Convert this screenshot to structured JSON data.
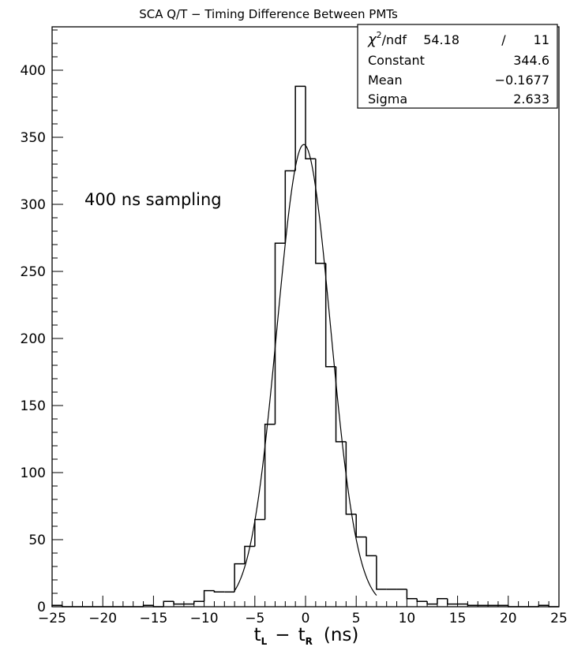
{
  "chart_data": {
    "type": "histogram",
    "title": "SCA Q/T − Timing Difference Between PMTs",
    "xlabel": {
      "main_l": "t",
      "sub_l": "L",
      "minus": "−",
      "main_r": "t",
      "sub_r": "R",
      "unit": "(ns)"
    },
    "ylabel": "",
    "xlim": [
      -25,
      25
    ],
    "ylim": [
      0,
      400
    ],
    "x_ticks": [
      -25,
      -20,
      -15,
      -10,
      -5,
      0,
      5,
      10,
      15,
      20,
      25
    ],
    "y_ticks": [
      0,
      50,
      100,
      150,
      200,
      250,
      300,
      350,
      400
    ],
    "bin_width": 1,
    "bins": [
      {
        "x0": -25,
        "y": 1
      },
      {
        "x0": -24,
        "y": 0
      },
      {
        "x0": -23,
        "y": 0
      },
      {
        "x0": -22,
        "y": 0
      },
      {
        "x0": -21,
        "y": 0
      },
      {
        "x0": -20,
        "y": 0
      },
      {
        "x0": -19,
        "y": 0
      },
      {
        "x0": -18,
        "y": 0
      },
      {
        "x0": -17,
        "y": 0
      },
      {
        "x0": -16,
        "y": 1
      },
      {
        "x0": -15,
        "y": 0
      },
      {
        "x0": -14,
        "y": 4
      },
      {
        "x0": -13,
        "y": 2
      },
      {
        "x0": -12,
        "y": 2
      },
      {
        "x0": -11,
        "y": 4
      },
      {
        "x0": -10,
        "y": 12
      },
      {
        "x0": -9,
        "y": 11
      },
      {
        "x0": -8,
        "y": 11
      },
      {
        "x0": -7,
        "y": 32
      },
      {
        "x0": -6,
        "y": 45
      },
      {
        "x0": -5,
        "y": 65
      },
      {
        "x0": -4,
        "y": 136
      },
      {
        "x0": -3,
        "y": 271
      },
      {
        "x0": -2,
        "y": 325
      },
      {
        "x0": -1,
        "y": 388
      },
      {
        "x0": 0,
        "y": 334
      },
      {
        "x0": 1,
        "y": 256
      },
      {
        "x0": 2,
        "y": 179
      },
      {
        "x0": 3,
        "y": 123
      },
      {
        "x0": 4,
        "y": 69
      },
      {
        "x0": 5,
        "y": 52
      },
      {
        "x0": 6,
        "y": 38
      },
      {
        "x0": 7,
        "y": 13
      },
      {
        "x0": 8,
        "y": 13
      },
      {
        "x0": 9,
        "y": 13
      },
      {
        "x0": 10,
        "y": 6
      },
      {
        "x0": 11,
        "y": 4
      },
      {
        "x0": 12,
        "y": 2
      },
      {
        "x0": 13,
        "y": 6
      },
      {
        "x0": 14,
        "y": 2
      },
      {
        "x0": 15,
        "y": 2
      },
      {
        "x0": 16,
        "y": 1
      },
      {
        "x0": 17,
        "y": 1
      },
      {
        "x0": 18,
        "y": 1
      },
      {
        "x0": 19,
        "y": 1
      },
      {
        "x0": 20,
        "y": 0
      },
      {
        "x0": 21,
        "y": 0
      },
      {
        "x0": 22,
        "y": 0
      },
      {
        "x0": 23,
        "y": 1
      },
      {
        "x0": 24,
        "y": 0
      }
    ],
    "fit": {
      "function": "gaussian",
      "constant": 344.6,
      "mean": -0.1677,
      "sigma": 2.633,
      "range": [
        -7,
        7
      ]
    },
    "stats_box": {
      "rows": [
        {
          "label_main": "χ",
          "label_sup": "2",
          "label_rest": "/ndf",
          "value_a": "54.18",
          "slash": "/",
          "value_b": "11"
        },
        {
          "label": "Constant",
          "value": "344.6"
        },
        {
          "label": "Mean",
          "value": "−0.1677"
        },
        {
          "label": "Sigma",
          "value": "2.633"
        }
      ]
    },
    "annotation": "400 ns sampling",
    "grid": false,
    "legend": "top-right"
  }
}
